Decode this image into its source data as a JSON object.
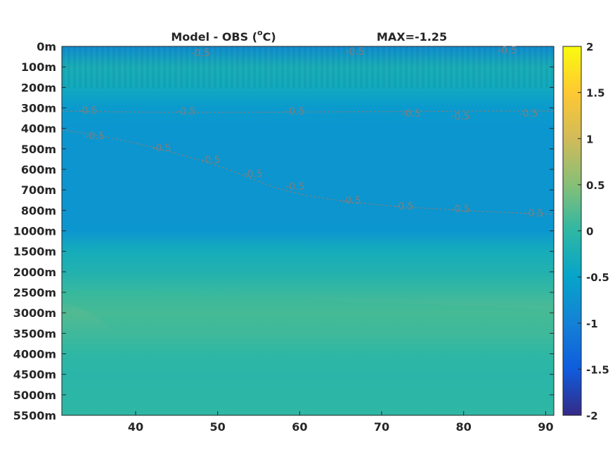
{
  "chart_data": {
    "type": "heatmap",
    "title": "Model - OBS (°C)",
    "title_main": "Model - OBS (",
    "title_sup": "o",
    "title_unit": "C)",
    "annotation": "MAX=-1.25",
    "xlabel": "",
    "ylabel": "",
    "xlim": [
      31,
      91
    ],
    "x_ticks": [
      40,
      50,
      60,
      70,
      80,
      90
    ],
    "y_tick_labels": [
      "0m",
      "100m",
      "200m",
      "300m",
      "400m",
      "500m",
      "600m",
      "700m",
      "800m",
      "1000m",
      "1500m",
      "2000m",
      "2500m",
      "3000m",
      "3500m",
      "4000m",
      "4500m",
      "5000m",
      "5500m"
    ],
    "colorbar": {
      "range": [
        -2,
        2
      ],
      "ticks": [
        "-2",
        "-1.5",
        "-1",
        "-0.5",
        "0",
        "0.5",
        "1",
        "1.5",
        "2"
      ],
      "colormap": "parula"
    },
    "contour_label": "-0.5",
    "depth_profile": [
      -0.85,
      -0.25,
      -0.35,
      -0.65,
      -0.7,
      -0.72,
      -0.72,
      -0.72,
      -0.72,
      -0.7,
      -0.3,
      -0.15,
      0.05,
      0.2,
      0.1,
      0.0,
      -0.05,
      -0.02,
      0.0
    ],
    "grid": false,
    "legend": "colorbar-right"
  },
  "colors": {
    "parula": [
      "#352a87",
      "#0f5cdd",
      "#1481d6",
      "#06a4ca",
      "#2eb7a4",
      "#87bf77",
      "#d1bb59",
      "#fec832",
      "#f9fb0e"
    ],
    "contour": "#7f7f7f",
    "text": "#262626"
  }
}
